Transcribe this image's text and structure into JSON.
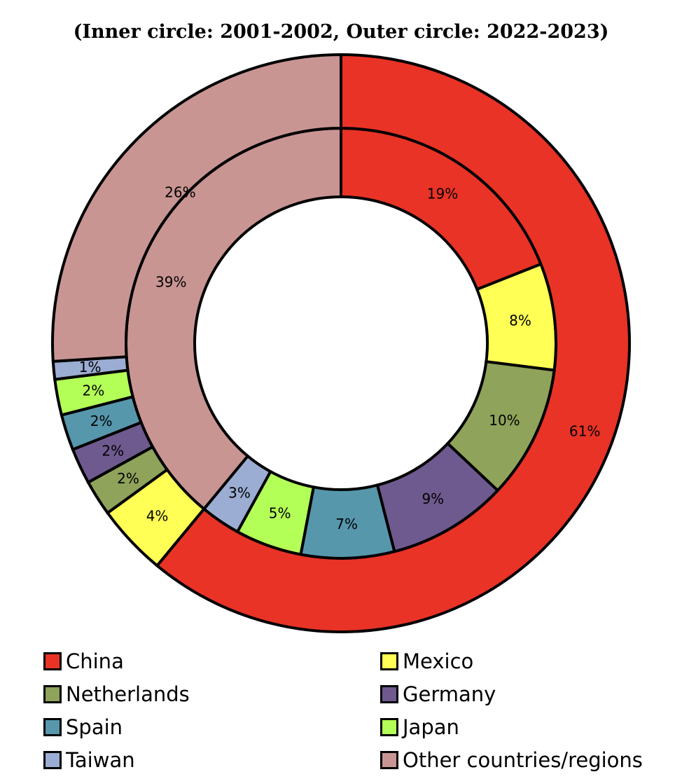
{
  "chart_data": {
    "type": "pie",
    "title": "(Inner circle: 2001-2002, Outer circle: 2022-2023)",
    "categories": [
      "China",
      "Mexico",
      "Netherlands",
      "Germany",
      "Spain",
      "Japan",
      "Taiwan",
      "Other countries/regions"
    ],
    "colors": [
      "#E93326",
      "#FFFF55",
      "#8FA35A",
      "#6E5A8E",
      "#5697AC",
      "#B3FF57",
      "#9BADD2",
      "#C99593"
    ],
    "series": [
      {
        "ring": "inner",
        "values": [
          19,
          8,
          10,
          9,
          7,
          5,
          3,
          39
        ],
        "labels": [
          "19%",
          "8%",
          "10%",
          "9%",
          "7%",
          "5%",
          "3%",
          "39%"
        ]
      },
      {
        "ring": "outer",
        "values": [
          61,
          4,
          2,
          2,
          2,
          2,
          1,
          26
        ],
        "labels": [
          "61%",
          "4%",
          "2%",
          "2%",
          "2%",
          "2%",
          "1%",
          "26%"
        ]
      }
    ],
    "legend_position": "bottom"
  }
}
